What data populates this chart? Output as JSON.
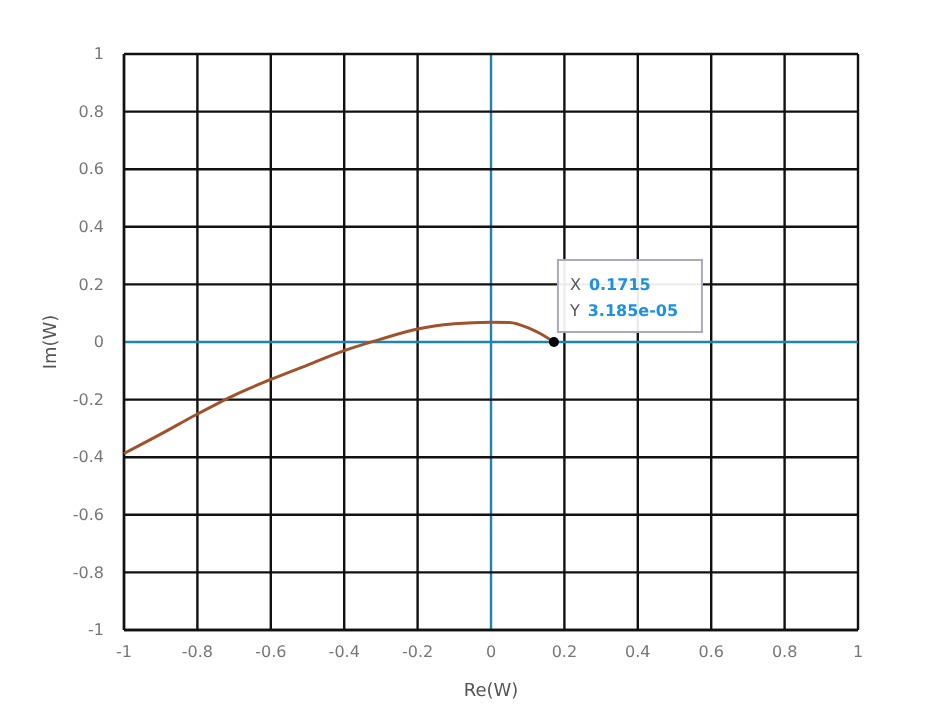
{
  "chart_data": {
    "type": "line",
    "xlabel": "Re(W)",
    "ylabel": "Im(W)",
    "xlim": [
      -1,
      1
    ],
    "ylim": [
      -1,
      1
    ],
    "xticks": [
      -1,
      -0.8,
      -0.6,
      -0.4,
      -0.2,
      0,
      0.2,
      0.4,
      0.6,
      0.8,
      1
    ],
    "yticks": [
      -1,
      -0.8,
      -0.6,
      -0.4,
      -0.2,
      0,
      0.2,
      0.4,
      0.6,
      0.8,
      1
    ],
    "grid": true,
    "series": [
      {
        "color": "#a0522d",
        "x": [
          -1,
          -0.9,
          -0.8,
          -0.7,
          -0.6,
          -0.5,
          -0.4,
          -0.3,
          -0.2,
          -0.1,
          0,
          0.05,
          0.1,
          0.13,
          0.1715
        ],
        "values": [
          -0.387,
          -0.32,
          -0.25,
          -0.185,
          -0.13,
          -0.08,
          -0.03,
          0.01,
          0.045,
          0.063,
          0.069,
          0.068,
          0.05,
          0.032,
          3.185e-05
        ]
      },
      {
        "type": "scatter",
        "color": "#000000",
        "x": [
          0.1715
        ],
        "values": [
          3.185e-05
        ]
      }
    ],
    "annotations": [
      "X 0.1715",
      "Y 3.185e-05"
    ]
  }
}
